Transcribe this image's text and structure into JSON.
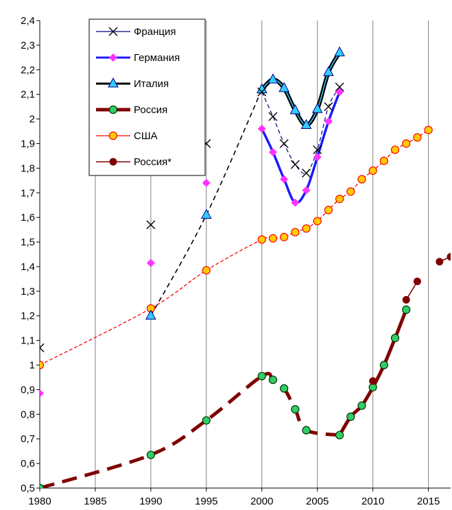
{
  "chart_data": {
    "type": "line",
    "title": "",
    "xlabel": "",
    "ylabel": "",
    "xlim": [
      1980,
      2017
    ],
    "ylim": [
      0.5,
      2.4
    ],
    "x_ticks": [
      1980,
      1985,
      1990,
      1995,
      2000,
      2005,
      2010,
      2015
    ],
    "y_ticks": [
      "0,5",
      "0,6",
      "0,7",
      "0,8",
      "0,9",
      "1",
      "1,1",
      "1,2",
      "1,3",
      "1,4",
      "1,5",
      "1,6",
      "1,7",
      "1,8",
      "1,9",
      "2",
      "2,1",
      "2,2",
      "2,3",
      "2,4"
    ],
    "grid": "vertical",
    "legend_position": "top-left",
    "series": [
      {
        "name": "Франция",
        "color": "#000080",
        "marker": "x",
        "points": [
          [
            1980,
            1.07
          ],
          [
            1990,
            1.57
          ],
          [
            1995,
            1.9
          ],
          [
            2000,
            2.11
          ],
          [
            2001,
            2.01
          ],
          [
            2002,
            1.9
          ],
          [
            2003,
            1.815
          ],
          [
            2004,
            1.78
          ],
          [
            2005,
            1.875
          ],
          [
            2006,
            2.05
          ],
          [
            2007,
            2.13
          ]
        ],
        "line_x_min": 2000
      },
      {
        "name": "Германия",
        "color": "#1a1aff",
        "marker": "diamond",
        "points": [
          [
            1980,
            0.885
          ],
          [
            1990,
            1.415
          ],
          [
            1995,
            1.74
          ],
          [
            2000,
            1.96
          ],
          [
            2001,
            1.865
          ],
          [
            2002,
            1.755
          ],
          [
            2003,
            1.66
          ],
          [
            2004,
            1.71
          ],
          [
            2005,
            1.845
          ],
          [
            2006,
            1.99
          ],
          [
            2007,
            2.11
          ]
        ],
        "line_x_min": 2000
      },
      {
        "name": "Италия",
        "color": "#000000",
        "marker": "triangle",
        "points": [
          [
            1990,
            1.2
          ],
          [
            1995,
            1.61
          ],
          [
            2000,
            2.12
          ],
          [
            2001,
            2.16
          ],
          [
            2002,
            2.125
          ],
          [
            2003,
            2.035
          ],
          [
            2004,
            1.975
          ],
          [
            2005,
            2.04
          ],
          [
            2006,
            2.19
          ],
          [
            2007,
            2.27
          ]
        ]
      },
      {
        "name": "Россия",
        "color": "#800000",
        "marker": "circle",
        "points": [
          [
            1980,
            0.5
          ],
          [
            1990,
            0.635
          ],
          [
            1995,
            0.775
          ],
          [
            2000,
            0.955
          ],
          [
            2001,
            0.94
          ],
          [
            2002,
            0.905
          ],
          [
            2003,
            0.82
          ],
          [
            2004,
            0.735
          ],
          [
            2007,
            0.715
          ],
          [
            2008,
            0.79
          ],
          [
            2009,
            0.835
          ],
          [
            2010,
            0.91
          ],
          [
            2011,
            1.0
          ],
          [
            2012,
            1.11
          ],
          [
            2013,
            1.225
          ]
        ]
      },
      {
        "name": "США",
        "color": "#ff0000",
        "marker": "circle",
        "points": [
          [
            1980,
            1.0
          ],
          [
            1990,
            1.23
          ],
          [
            1995,
            1.385
          ],
          [
            2000,
            1.51
          ],
          [
            2001,
            1.515
          ],
          [
            2002,
            1.52
          ],
          [
            2003,
            1.54
          ],
          [
            2004,
            1.555
          ],
          [
            2005,
            1.585
          ],
          [
            2006,
            1.63
          ],
          [
            2007,
            1.675
          ],
          [
            2008,
            1.705
          ],
          [
            2009,
            1.755
          ],
          [
            2010,
            1.79
          ],
          [
            2011,
            1.83
          ],
          [
            2012,
            1.875
          ],
          [
            2013,
            1.9
          ],
          [
            2014,
            1.925
          ],
          [
            2015,
            1.955
          ]
        ]
      },
      {
        "name": "Россия*",
        "color": "#800000",
        "marker": "circle",
        "points": [
          [
            2010,
            0.935
          ],
          [
            2013,
            1.265
          ],
          [
            2014,
            1.34
          ],
          [
            2016,
            1.42
          ],
          [
            2017,
            1.44
          ]
        ]
      }
    ]
  }
}
